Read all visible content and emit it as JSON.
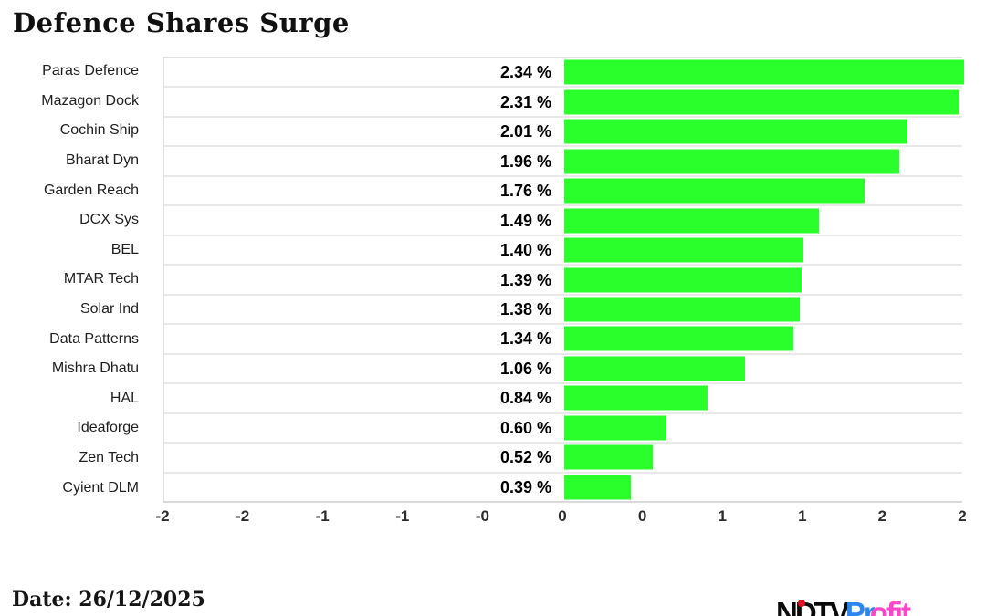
{
  "title": "Defence Shares Surge",
  "chart_data": {
    "type": "bar",
    "orientation": "horizontal",
    "title": "Defence Shares Surge",
    "categories": [
      "Paras Defence",
      "Mazagon Dock",
      "Cochin Ship",
      "Bharat Dyn",
      "Garden Reach",
      "DCX Sys",
      "BEL",
      "MTAR Tech",
      "Solar Ind",
      "Data Patterns",
      "Mishra Dhatu",
      "HAL",
      "Ideaforge",
      "Zen Tech",
      "Cyient DLM"
    ],
    "values": [
      2.34,
      2.31,
      2.01,
      1.96,
      1.76,
      1.49,
      1.4,
      1.39,
      1.38,
      1.34,
      1.06,
      0.84,
      0.6,
      0.52,
      0.39
    ],
    "value_labels": [
      "2.34 %",
      "2.31 %",
      "2.01 %",
      "1.96 %",
      "1.76 %",
      "1.49 %",
      "1.40 %",
      "1.39 %",
      "1.38 %",
      "1.34 %",
      "1.06 %",
      "0.84 %",
      "0.60 %",
      "0.52 %",
      "0.39 %"
    ],
    "unit": "%",
    "x_tick_labels": [
      "-2",
      "-2",
      "-1",
      "-1",
      "-0",
      "0",
      "0",
      "1",
      "1",
      "2",
      "2"
    ],
    "xlim": [
      -2.5,
      2.5
    ],
    "grid": true,
    "legend": "none",
    "bar_color": "#2bff2b"
  },
  "footer": {
    "date_label": "Date: 26/12/2025",
    "logo": {
      "brand_black": "NDTV",
      "brand_blue": "Pr",
      "brand_pink": "ofit",
      "dot_color": "#e01020"
    }
  }
}
